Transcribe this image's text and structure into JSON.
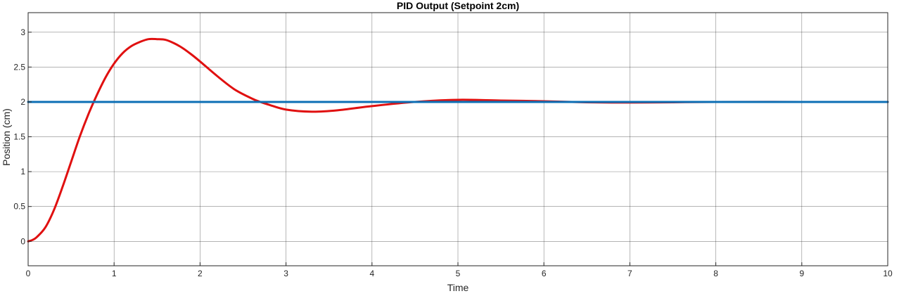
{
  "chart_data": {
    "type": "line",
    "title": "PID Output (Setpoint 2cm)",
    "xlabel": "Time",
    "ylabel": "Position (cm)",
    "xlim": [
      0,
      10
    ],
    "ylim": [
      -0.35,
      3.28
    ],
    "xticks": [
      "0",
      "1",
      "2",
      "3",
      "4",
      "5",
      "6",
      "7",
      "8",
      "9",
      "10"
    ],
    "yticks": [
      "0",
      "0.5",
      "1",
      "1.5",
      "2",
      "2.5",
      "3"
    ],
    "grid": true,
    "legend": "none",
    "series": [
      {
        "color": "#e01010",
        "x": [
          0,
          0.05,
          0.1,
          0.2,
          0.3,
          0.4,
          0.5,
          0.6,
          0.7,
          0.8,
          0.9,
          1.0,
          1.1,
          1.2,
          1.3,
          1.4,
          1.5,
          1.6,
          1.7,
          1.8,
          1.9,
          2.0,
          2.2,
          2.4,
          2.6,
          2.7,
          2.8,
          3.0,
          3.3,
          3.6,
          4.0,
          4.5,
          5.0,
          5.5,
          6.0,
          6.5,
          7.0,
          7.5,
          8.0,
          9.0,
          10.0
        ],
        "y": [
          0,
          0.02,
          0.06,
          0.2,
          0.45,
          0.78,
          1.14,
          1.5,
          1.82,
          2.1,
          2.35,
          2.55,
          2.7,
          2.8,
          2.86,
          2.9,
          2.9,
          2.89,
          2.84,
          2.77,
          2.68,
          2.58,
          2.37,
          2.18,
          2.05,
          2.0,
          1.96,
          1.89,
          1.86,
          1.88,
          1.94,
          2.0,
          2.03,
          2.02,
          2.01,
          1.995,
          1.99,
          1.995,
          2.0,
          2.0,
          2.0
        ]
      },
      {
        "color": "#0c6fb5",
        "x": [
          0,
          10
        ],
        "y": [
          2,
          2
        ]
      }
    ]
  }
}
